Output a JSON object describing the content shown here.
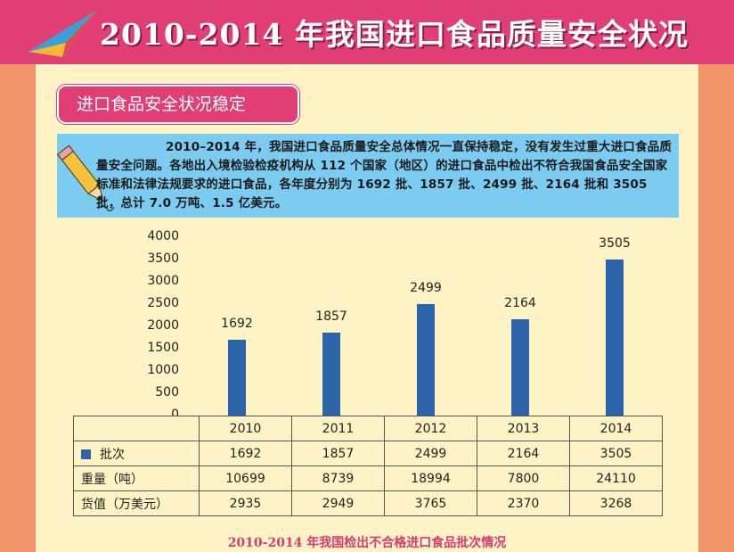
{
  "header": {
    "title": "2010-2014 年我国进口食品质量安全状况"
  },
  "section": {
    "title": "进口食品安全状况稳定"
  },
  "intro": {
    "text": "2010–2014 年，我国进口食品质量安全总体情况一直保持稳定，没有发生过重大进口食品质量安全问题。各地出入境检验检疫机构从 112 个国家（地区）的进口食品中检出不符合我国食品安全国家标准和法律法规要求的进口食品，各年度分别为 1692 批、1857 批、2499 批、2164 批和 3505 批，总计 7.0 万吨、1.5 亿美元。"
  },
  "icons": {
    "banner": "paper-plane-icon",
    "intro": "pencil-icon"
  },
  "colors": {
    "banner": "#e23e76",
    "bar": "#2d63a8",
    "panel": "#fdf3c4",
    "infobox": "#7ccbf0"
  },
  "chart_data": {
    "type": "bar",
    "title": "2010-2014 年我国检出不合格进口食品批次情况",
    "categories": [
      "2010",
      "2011",
      "2012",
      "2013",
      "2014"
    ],
    "series": [
      {
        "name": "批次",
        "values": [
          1692,
          1857,
          2499,
          2164,
          3505
        ]
      }
    ],
    "yticks": [
      "0",
      "500",
      "1000",
      "1500",
      "2000",
      "2500",
      "3000",
      "3500",
      "4000"
    ],
    "ylim": [
      0,
      4000
    ],
    "grid": false,
    "table": {
      "rows": [
        {
          "label": "批次",
          "values": [
            "1692",
            "1857",
            "2499",
            "2164",
            "3505"
          ]
        },
        {
          "label": "重量（吨）",
          "values": [
            "10699",
            "8739",
            "18994",
            "7800",
            "24110"
          ]
        },
        {
          "label": "货值（万美元）",
          "values": [
            "2935",
            "2949",
            "3765",
            "2370",
            "3268"
          ]
        }
      ]
    }
  }
}
